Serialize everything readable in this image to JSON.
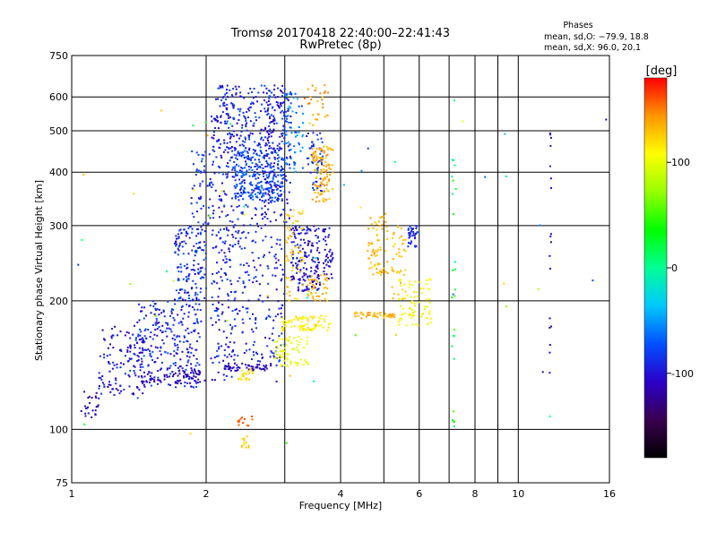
{
  "chart_data": {
    "type": "scatter",
    "title": "Tromsø 20170418 22:40:00–22:41:43",
    "subtitle": "RwPretec (8p)",
    "xlabel": "Frequency [MHz]",
    "ylabel": "Stationary phase Virtual Height [km]",
    "x_scale": "log",
    "y_scale": "log",
    "xlim": [
      1,
      16
    ],
    "ylim": [
      75,
      750
    ],
    "x_ticks": [
      1,
      2,
      4,
      6,
      8,
      10,
      16
    ],
    "x_tick_labels": [
      "1",
      "2",
      "4",
      "6",
      "8",
      "10",
      "16"
    ],
    "x_grid": [
      2,
      3,
      4,
      5,
      6,
      7,
      8,
      9,
      10
    ],
    "y_ticks": [
      75,
      100,
      200,
      300,
      400,
      500,
      600,
      750
    ],
    "y_tick_labels": [
      "75",
      "100",
      "200",
      "300",
      "400",
      "500",
      "600",
      "750"
    ],
    "y_grid": [
      100,
      200,
      300,
      400,
      500,
      600
    ],
    "grid": true,
    "legend": {
      "title": "Phases",
      "line1": "mean, sd,O: −79.9, 18.8",
      "line2": "mean, sd,X:  96.0, 20.1",
      "placement": "top-right"
    },
    "colorbar": {
      "label": "[deg]",
      "min": -180,
      "max": 180,
      "ticks": [
        -100,
        0,
        100
      ],
      "tick_labels": [
        "-100",
        "0",
        "100"
      ],
      "colormap": [
        "#000000",
        "#3a0050",
        "#2a00c8",
        "#0050ff",
        "#00c8ff",
        "#00ff96",
        "#00ff00",
        "#96ff00",
        "#ffff00",
        "#ff9600",
        "#ff0000"
      ]
    },
    "series": [
      {
        "clusters": [
          {
            "f": [
              1.05,
              1.15
            ],
            "h": [
              105,
              125
            ],
            "phase": [
              -120,
              -95
            ],
            "n": 25
          },
          {
            "f": [
              1.15,
              1.45
            ],
            "h": [
              120,
              175
            ],
            "phase": [
              -120,
              -80
            ],
            "n": 120
          },
          {
            "f": [
              1.4,
              1.95
            ],
            "h": [
              125,
              200
            ],
            "phase": [
              -115,
              -70
            ],
            "n": 260
          },
          {
            "f": [
              1.7,
              2.0
            ],
            "h": [
              200,
              300
            ],
            "phase": [
              -110,
              -65
            ],
            "n": 150
          },
          {
            "f": [
              1.85,
              2.05
            ],
            "h": [
              300,
              450
            ],
            "phase": [
              -100,
              -70
            ],
            "n": 50
          },
          {
            "f": [
              1.45,
              2.0
            ],
            "h": [
              128,
              138
            ],
            "phase": [
              -125,
              -100
            ],
            "n": 70
          },
          {
            "f": [
              2.05,
              2.3
            ],
            "h": [
              130,
              560
            ],
            "phase": [
              -115,
              -75
            ],
            "n": 240
          },
          {
            "f": [
              2.1,
              2.3
            ],
            "h": [
              560,
              640
            ],
            "phase": [
              -110,
              -70
            ],
            "n": 35
          },
          {
            "f": [
              2.3,
              3.0
            ],
            "h": [
              340,
              450
            ],
            "phase": [
              -100,
              -60
            ],
            "n": 320
          },
          {
            "f": [
              2.3,
              3.0
            ],
            "h": [
              450,
              640
            ],
            "phase": [
              -110,
              -70
            ],
            "n": 180
          },
          {
            "f": [
              2.3,
              3.0
            ],
            "h": [
              140,
              340
            ],
            "phase": [
              -110,
              -75
            ],
            "n": 200
          },
          {
            "f": [
              2.2,
              2.8
            ],
            "h": [
              137,
              143
            ],
            "phase": [
              -125,
              -100
            ],
            "n": 50
          },
          {
            "f": [
              2.7,
              3.1
            ],
            "h": [
              300,
              620
            ],
            "phase": [
              -125,
              -85
            ],
            "n": 100
          },
          {
            "f": [
              3.0,
              3.3
            ],
            "h": [
              400,
              620
            ],
            "phase": [
              -80,
              -40
            ],
            "n": 70
          },
          {
            "f": [
              3.1,
              3.6
            ],
            "h": [
              210,
              300
            ],
            "phase": [
              -120,
              -85
            ],
            "n": 160
          },
          {
            "f": [
              3.35,
              3.65
            ],
            "h": [
              360,
              500
            ],
            "phase": [
              -100,
              -70
            ],
            "n": 50
          },
          {
            "f": [
              3.65,
              3.85
            ],
            "h": [
              225,
              300
            ],
            "phase": [
              -120,
              -90
            ],
            "n": 40
          },
          {
            "f": [
              5.65,
              5.95
            ],
            "h": [
              265,
              300
            ],
            "phase": [
              -105,
              -75
            ],
            "n": 35
          },
          {
            "f": [
              2.35,
              2.55
            ],
            "h": [
              130,
              140
            ],
            "phase": [
              110,
              130
            ],
            "n": 20
          },
          {
            "f": [
              2.35,
              2.55
            ],
            "h": [
              102,
              110
            ],
            "phase": [
              150,
              170
            ],
            "n": 14
          },
          {
            "f": [
              2.4,
              2.55
            ],
            "h": [
              90,
              97
            ],
            "phase": [
              115,
              135
            ],
            "n": 12
          },
          {
            "f": [
              2.85,
              3.4
            ],
            "h": [
              140,
              165
            ],
            "phase": [
              90,
              115
            ],
            "n": 70
          },
          {
            "f": [
              2.95,
              3.8
            ],
            "h": [
              170,
              185
            ],
            "phase": [
              100,
              125
            ],
            "n": 80
          },
          {
            "f": [
              3.0,
              3.3
            ],
            "h": [
              200,
              330
            ],
            "phase": [
              115,
              140
            ],
            "n": 60
          },
          {
            "f": [
              3.45,
              3.85
            ],
            "h": [
              340,
              460
            ],
            "phase": [
              120,
              150
            ],
            "n": 110
          },
          {
            "f": [
              3.35,
              3.75
            ],
            "h": [
              200,
              230
            ],
            "phase": [
              125,
              145
            ],
            "n": 40
          },
          {
            "f": [
              3.3,
              3.75
            ],
            "h": [
              510,
              640
            ],
            "phase": [
              125,
              155
            ],
            "n": 30
          },
          {
            "f": [
              4.6,
              5.1
            ],
            "h": [
              230,
              320
            ],
            "phase": [
              120,
              145
            ],
            "n": 70
          },
          {
            "f": [
              4.3,
              5.3
            ],
            "h": [
              182,
              188
            ],
            "phase": [
              125,
              145
            ],
            "n": 45
          },
          {
            "f": [
              5.2,
              5.6
            ],
            "h": [
              200,
              300
            ],
            "phase": [
              120,
              140
            ],
            "n": 40
          },
          {
            "f": [
              5.4,
              6.4
            ],
            "h": [
              175,
              225
            ],
            "phase": [
              95,
              120
            ],
            "n": 80
          },
          {
            "f": [
              7.1,
              7.25
            ],
            "h": [
              100,
              600
            ],
            "phase": [
              -5,
              60
            ],
            "n": 25
          },
          {
            "f": [
              11.75,
              11.85
            ],
            "h": [
              110,
              500
            ],
            "phase": [
              -130,
              -95
            ],
            "n": 18
          },
          {
            "f": [
              1.0,
              16.0
            ],
            "h": [
              90,
              650
            ],
            "phase": [
              -120,
              140
            ],
            "n": 55
          }
        ]
      }
    ]
  }
}
